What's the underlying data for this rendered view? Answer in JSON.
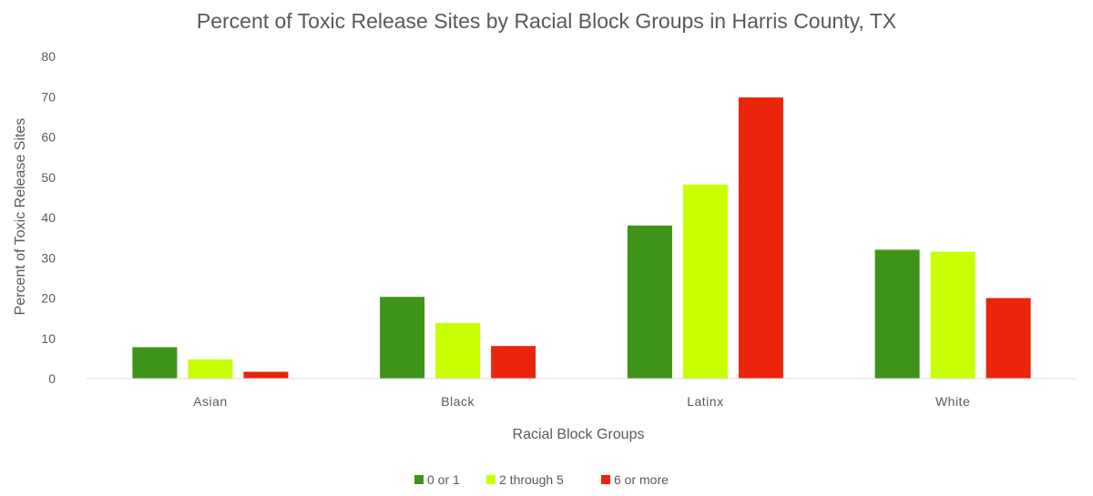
{
  "chart_data": {
    "type": "bar",
    "title": "Percent of Toxic Release Sites by Racial Block Groups in Harris County, TX",
    "xlabel": "Racial Block Groups",
    "ylabel": "Percent of Toxic Release Sites",
    "categories": [
      "Asian",
      "Black",
      "Latinx",
      "White"
    ],
    "ylim": [
      0,
      80
    ],
    "yticks": [
      "0",
      "10",
      "20",
      "30",
      "40",
      "50",
      "60",
      "70",
      "80"
    ],
    "grid": false,
    "legend_position": "bottom",
    "series": [
      {
        "name": "0 or 1",
        "color": "#3f9318",
        "values": [
          7.8,
          20.3,
          38.0,
          32.0
        ]
      },
      {
        "name": "2 through 5",
        "color": "#c8ff00",
        "values": [
          4.8,
          13.8,
          48.2,
          31.5
        ]
      },
      {
        "name": "6 or more",
        "color": "#ea250c",
        "values": [
          1.7,
          8.1,
          69.8,
          20.0
        ]
      }
    ]
  }
}
